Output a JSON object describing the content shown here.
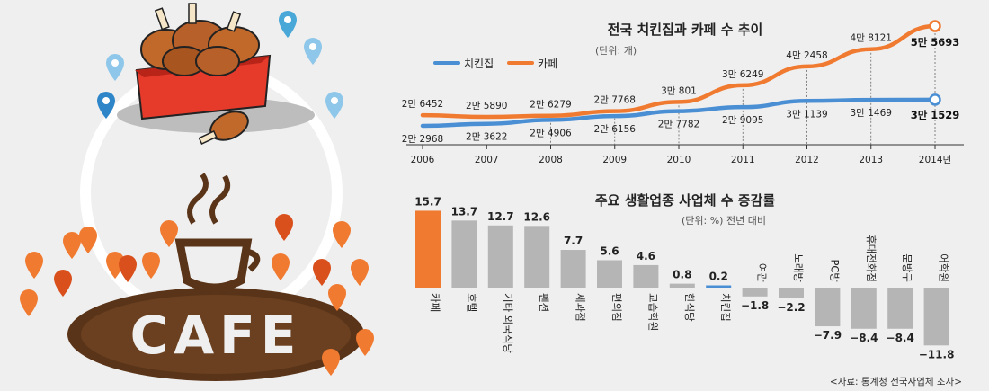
{
  "colors": {
    "chicken": "#4a8fd4",
    "cafe": "#f07a30",
    "bar_gray": "#b5b5b5",
    "bar_highlight": "#f07a30",
    "bar_chicken_line": "#4a8fd4"
  },
  "chart_data": [
    {
      "type": "line",
      "title": "전국 치킨집과 카페 수 추이",
      "subtitle": "(단위: 개)",
      "x": [
        "2006",
        "2007",
        "2008",
        "2009",
        "2010",
        "2011",
        "2012",
        "2013",
        "2014년"
      ],
      "series": [
        {
          "name": "카페",
          "values": [
            26452,
            25890,
            26279,
            27768,
            30801,
            36249,
            42458,
            48121,
            55693
          ],
          "labels": [
            "2만 6452",
            "2만 5890",
            "2만 6279",
            "2만 7768",
            "3만 801",
            "3만 6249",
            "4만 2458",
            "4만 8121",
            "5만 5693"
          ]
        },
        {
          "name": "치킨집",
          "values": [
            22968,
            23622,
            24906,
            26156,
            27782,
            29095,
            31139,
            31469,
            31529
          ],
          "labels": [
            "2만 2968",
            "2만 3622",
            "2만 4906",
            "2만 6156",
            "2만 7782",
            "2만 9095",
            "3만 1139",
            "3만 1469",
            "3만 1529"
          ]
        }
      ],
      "legend": "top-left"
    },
    {
      "type": "bar",
      "title": "주요 생활업종 사업체 수 증감률",
      "subtitle": "(단위: %) 전년 대비",
      "categories": [
        "카페",
        "호텔",
        "기타 외국식당",
        "펜션",
        "제과점",
        "편의점",
        "교습학원",
        "한식당",
        "치킨집",
        "여관",
        "노래방",
        "PC방",
        "휴대전화점",
        "문방구",
        "어학원"
      ],
      "values": [
        15.7,
        13.7,
        12.7,
        12.6,
        7.7,
        5.6,
        4.6,
        0.8,
        0.2,
        -1.8,
        -2.2,
        -7.9,
        -8.4,
        -8.4,
        -11.8
      ],
      "value_labels": [
        "15.7",
        "13.7",
        "12.7",
        "12.6",
        "7.7",
        "5.6",
        "4.6",
        "0.8",
        "0.2",
        "−1.8",
        "−2.2",
        "−7.9",
        "−8.4",
        "−8.4",
        "−11.8"
      ],
      "highlight": "카페",
      "source": "<자료: 통계청 전국사업체 조사>"
    }
  ]
}
